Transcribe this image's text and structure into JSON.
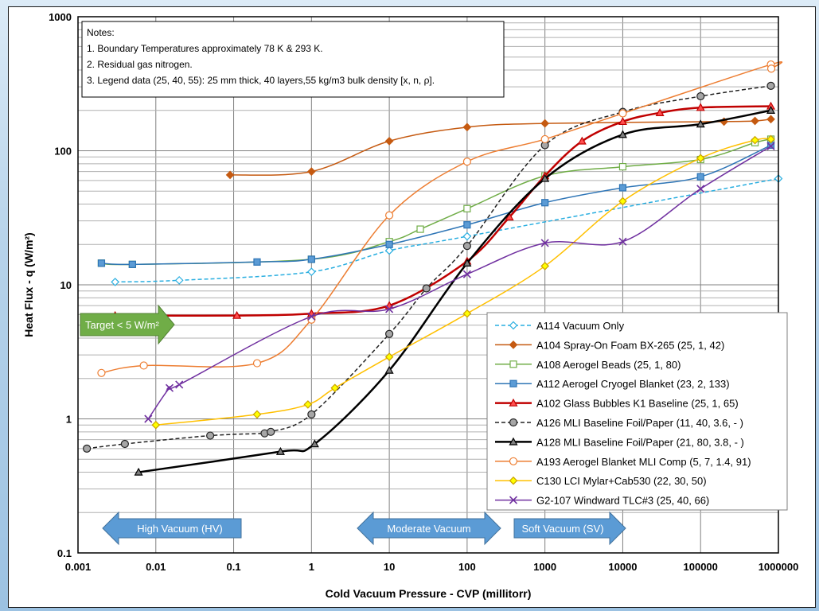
{
  "chart_data": {
    "type": "line",
    "xlabel": "Cold Vacuum Pressure - CVP (millitorr)",
    "ylabel": "Heat Flux - q (W/m²)",
    "x_scale": "log",
    "y_scale": "log",
    "xlim": [
      0.001,
      1000000
    ],
    "ylim": [
      0.1,
      1000
    ],
    "grid": true,
    "legend_position": "bottom-right",
    "x_ticks": [
      "0.001",
      "0.01",
      "0.1",
      "1",
      "10",
      "100",
      "1000",
      "10000",
      "100000",
      "1000000"
    ],
    "y_ticks": [
      "0.1",
      "1",
      "10",
      "100",
      "1000"
    ],
    "notes": [
      "Notes:",
      "1. Boundary Temperatures approximately 78 K  & 293 K.",
      "2. Residual gas nitrogen.",
      "3. Legend data (25, 40, 55): 25 mm thick, 40 layers,55 kg/m3 bulk density [x, n, ρ]."
    ],
    "annotations": {
      "target": "Target < 5 W/m²",
      "regions": [
        "High Vacuum (HV)",
        "Moderate Vacuum",
        "Soft Vacuum (SV)"
      ]
    },
    "series": [
      {
        "name": "A114 Vacuum Only",
        "color": "#29aee0",
        "dash": true,
        "width": 1.5,
        "marker": "diamond",
        "marker_fill": "#ffffff",
        "x": [
          0.003,
          0.02,
          1,
          10,
          100,
          1000000
        ],
        "y": [
          10.5,
          10.8,
          12.5,
          18,
          23,
          62
        ]
      },
      {
        "name": "A104 Spray-On Foam BX-265 (25, 1, 42)",
        "color": "#c55a11",
        "dash": false,
        "width": 1.5,
        "marker": "diamond",
        "marker_fill": "#c55a11",
        "x": [
          0.09,
          1,
          10,
          100,
          1000,
          200000,
          500000,
          800000
        ],
        "y": [
          66,
          70,
          118,
          150,
          160,
          165,
          167,
          172
        ]
      },
      {
        "name": "A108 Aerogel Beads (25, 1, 80)",
        "color": "#70ad47",
        "dash": false,
        "width": 1.5,
        "marker": "square",
        "marker_fill": "#ffffff",
        "x": [
          0.002,
          0.005,
          1,
          10,
          25,
          100,
          1000,
          10000,
          100000,
          500000,
          800000
        ],
        "y": [
          14.5,
          14.2,
          15.5,
          21,
          26,
          37,
          65,
          76,
          86,
          115,
          122
        ]
      },
      {
        "name": "A112 Aerogel Cryogel Blanket (23, 2, 133)",
        "color": "#2e75b6",
        "dash": false,
        "width": 1.5,
        "marker": "square",
        "marker_fill": "#5b9bd5",
        "x": [
          0.002,
          0.005,
          0.2,
          1,
          10,
          100,
          1000,
          10000,
          100000,
          800000
        ],
        "y": [
          14.5,
          14.2,
          14.8,
          15.5,
          20,
          28,
          41,
          53,
          64,
          110
        ]
      },
      {
        "name": "A102 Glass Bubbles K1 Baseline (25, 1, 65)",
        "color": "#c00000",
        "dash": false,
        "width": 2.5,
        "marker": "triangle",
        "marker_fill": "#ff5050",
        "x": [
          0.003,
          0.11,
          1,
          10,
          100,
          350,
          1000,
          3000,
          10000,
          30000,
          100000,
          800000
        ],
        "y": [
          5.9,
          5.9,
          6.1,
          7.0,
          15,
          32,
          65,
          118,
          165,
          192,
          210,
          215
        ]
      },
      {
        "name": "A126 MLI Baseline Foil/Paper (11, 40, 3.6, - )",
        "color": "#222222",
        "dash": true,
        "width": 1.5,
        "marker": "circle",
        "marker_fill": "#a6a6a6",
        "x": [
          0.0013,
          0.004,
          0.05,
          0.25,
          0.3,
          1,
          10,
          30,
          100,
          1000,
          10000,
          100000,
          800000
        ],
        "y": [
          0.6,
          0.65,
          0.75,
          0.78,
          0.8,
          1.08,
          4.3,
          9.4,
          19.5,
          110,
          195,
          255,
          305
        ]
      },
      {
        "name": "A128 MLI Baseline Foil/Paper (21, 80, 3.8, - )",
        "color": "#000000",
        "dash": false,
        "width": 2.5,
        "marker": "triangle",
        "marker_fill": "#808080",
        "x": [
          0.006,
          0.4,
          1.1,
          10,
          100,
          1000,
          10000,
          100000,
          800000
        ],
        "y": [
          0.4,
          0.57,
          0.65,
          2.3,
          14.5,
          62,
          132,
          158,
          200
        ]
      },
      {
        "name": "A193 Aerogel Blanket MLI Comp (5, 7, 1.4, 91)",
        "color": "#ed7d31",
        "dash": false,
        "width": 1.5,
        "marker": "circle",
        "marker_fill": "#ffffff",
        "x": [
          0.002,
          0.007,
          0.2,
          1,
          10,
          100,
          1000,
          10000,
          800000,
          810000
        ],
        "y": [
          2.2,
          2.5,
          2.6,
          5.5,
          33,
          83,
          122,
          190,
          440,
          410
        ]
      },
      {
        "name": "C130 LCI Mylar+Cab530 (22, 30, 50)",
        "color": "#ffc000",
        "dash": false,
        "width": 1.5,
        "marker": "diamond",
        "marker_fill": "#ffff00",
        "x": [
          0.01,
          0.2,
          0.9,
          2,
          10,
          100,
          1000,
          10000,
          100000,
          500000,
          800000
        ],
        "y": [
          0.9,
          1.08,
          1.28,
          1.7,
          2.9,
          6.1,
          13.8,
          42,
          88,
          120,
          122
        ]
      },
      {
        "name": "G2-107 Windward TLC#3 (25, 40, 66)",
        "color": "#7030a0",
        "dash": false,
        "width": 1.5,
        "marker": "x",
        "marker_fill": "#7030a0",
        "x": [
          0.008,
          0.015,
          0.02,
          1,
          10,
          100,
          1000,
          10000,
          100000,
          800000
        ],
        "y": [
          1.0,
          1.7,
          1.8,
          5.8,
          6.6,
          12,
          20.5,
          21,
          52,
          108
        ]
      }
    ]
  }
}
